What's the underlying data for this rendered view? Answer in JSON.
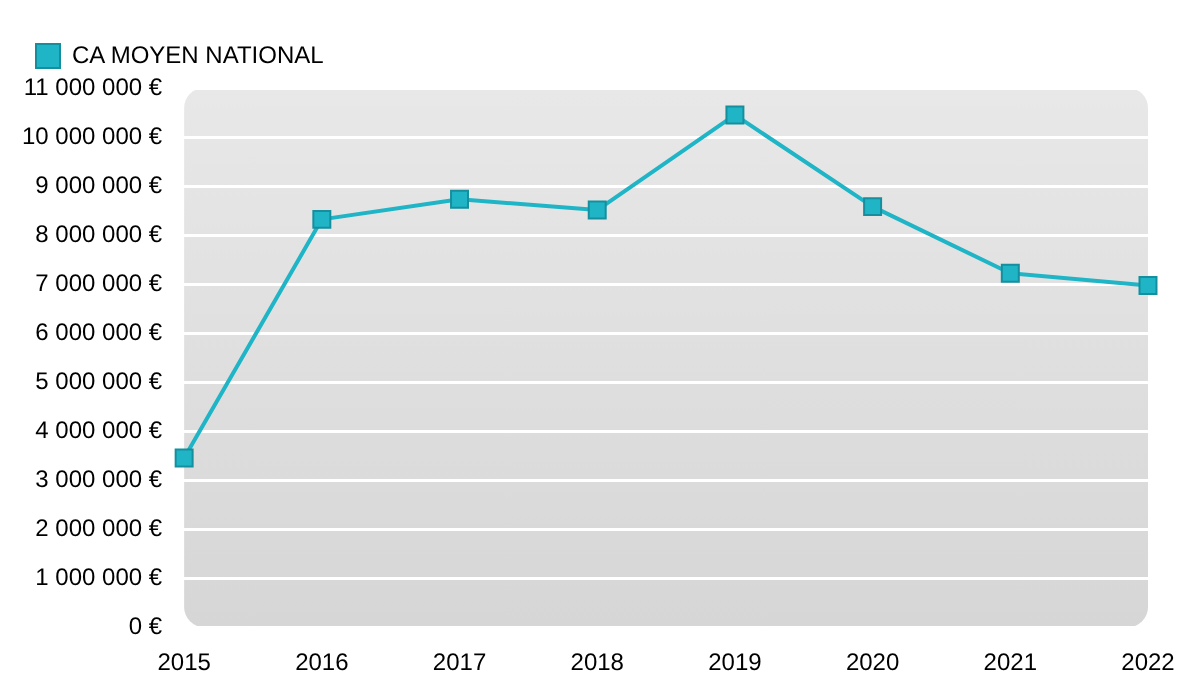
{
  "chart_data": {
    "type": "line",
    "categories": [
      "2015",
      "2016",
      "2017",
      "2018",
      "2019",
      "2020",
      "2021",
      "2022"
    ],
    "series": [
      {
        "name": "CA MOYEN NATIONAL",
        "color": "#1fb5c6",
        "values": [
          3450000,
          8320000,
          8730000,
          8510000,
          10450000,
          8580000,
          7220000,
          6970000
        ]
      }
    ],
    "ylim": [
      0,
      11000000
    ],
    "yticks": [
      {
        "value": 0,
        "label": "0 €"
      },
      {
        "value": 1000000,
        "label": "1 000 000 €"
      },
      {
        "value": 2000000,
        "label": "2 000 000 €"
      },
      {
        "value": 3000000,
        "label": "3 000 000 €"
      },
      {
        "value": 4000000,
        "label": "4 000 000 €"
      },
      {
        "value": 5000000,
        "label": "5 000 000 €"
      },
      {
        "value": 6000000,
        "label": "6 000 000 €"
      },
      {
        "value": 7000000,
        "label": "7 000 000 €"
      },
      {
        "value": 8000000,
        "label": "8 000 000 €"
      },
      {
        "value": 9000000,
        "label": "9 000 000 €"
      },
      {
        "value": 10000000,
        "label": "10 000 000 €"
      },
      {
        "value": 11000000,
        "label": "11 000 000 €"
      }
    ],
    "grid": "y",
    "legend": "top left",
    "marker": "square",
    "line_style": "solid"
  }
}
